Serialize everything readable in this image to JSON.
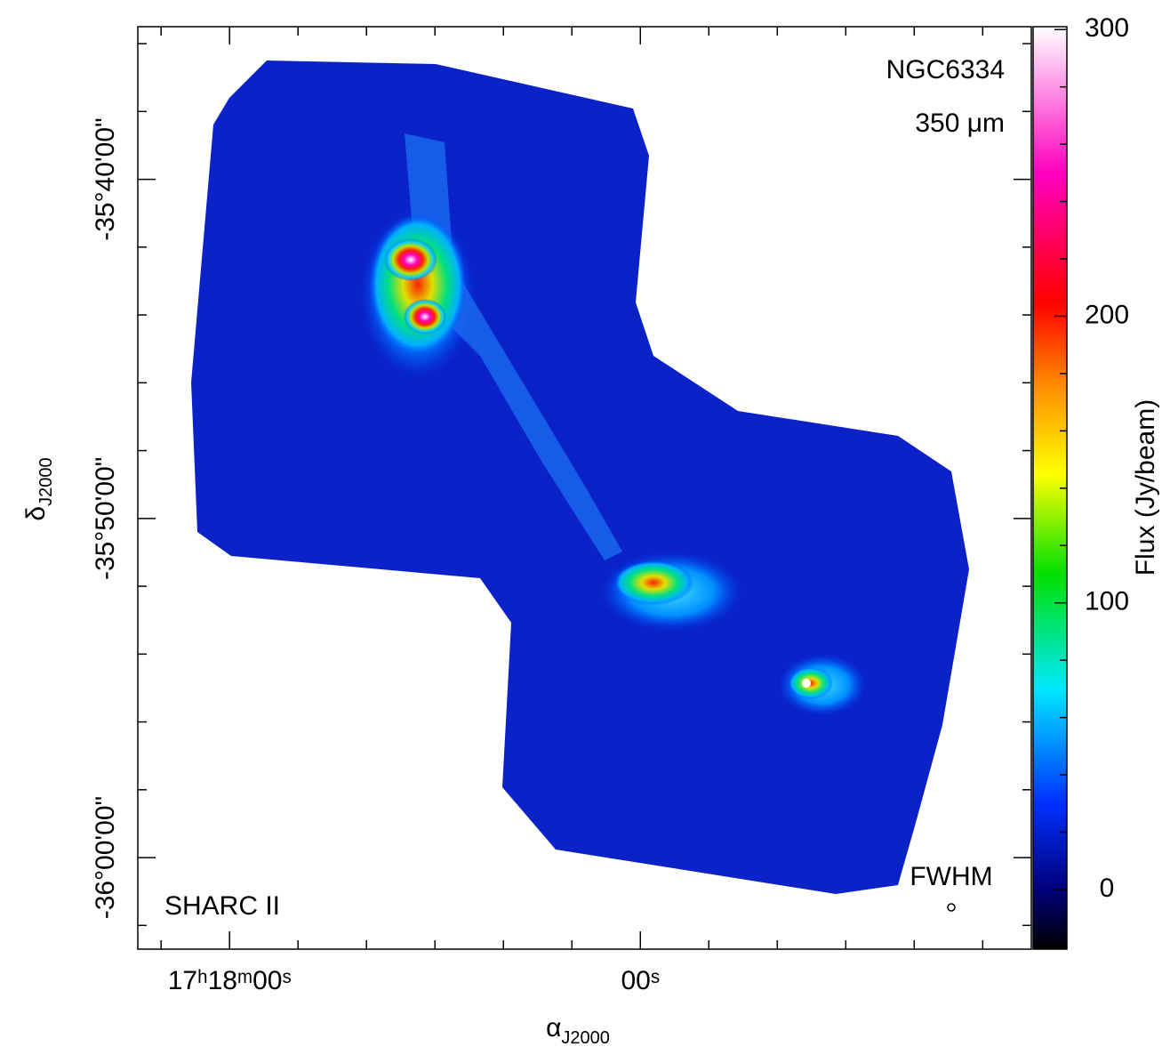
{
  "chart_data": {
    "type": "image",
    "title": "NGC6334",
    "wavelength": "350 μm",
    "instrument": "SHARC II",
    "beam_label": "FWHM",
    "xlabel": {
      "symbol": "α",
      "sub": "J2000"
    },
    "ylabel": {
      "symbol": "δ",
      "sub": "J2000"
    },
    "xlim": [
      1093.4,
      962.9
    ],
    "xticks": [
      {
        "value": 1080,
        "label": "17ʰ18ᵐ00ˢ"
      },
      {
        "value": 1020,
        "label": "00ˢ"
      }
    ],
    "xminorticks": [
      1090,
      1070,
      1060,
      1050,
      1040,
      1030,
      1010,
      1000,
      990,
      980,
      970
    ],
    "ylim": [
      -2162.7,
      -2135.5
    ],
    "yticks": [
      {
        "value": -2140,
        "label": "-35°40'00\""
      },
      {
        "value": -2150,
        "label": "-35°50'00\""
      },
      {
        "value": -2160,
        "label": "-36°00'00\""
      }
    ],
    "yminorticks": [
      -2136,
      -2138,
      -2142,
      -2144,
      -2146,
      -2148,
      -2152,
      -2154,
      -2156,
      -2158,
      -2162
    ],
    "colorbar": {
      "label": "Flux (Jy/beam)",
      "lim": [
        -20.8,
        301
      ],
      "ticks": [
        0,
        100,
        200,
        300
      ],
      "minorticks": [
        20,
        40,
        60,
        80,
        120,
        140,
        160,
        180,
        220,
        240,
        260,
        280
      ],
      "colormap": [
        {
          "value": -20.8,
          "color": "#000000"
        },
        {
          "value": 0,
          "color": "#00007a"
        },
        {
          "value": 30,
          "color": "#0030ff"
        },
        {
          "value": 70,
          "color": "#00e8ff"
        },
        {
          "value": 110,
          "color": "#00e000"
        },
        {
          "value": 145,
          "color": "#ffff00"
        },
        {
          "value": 175,
          "color": "#ff9000"
        },
        {
          "value": 205,
          "color": "#ff0000"
        },
        {
          "value": 250,
          "color": "#ff00c0"
        },
        {
          "value": 301,
          "color": "#ffffff"
        }
      ]
    }
  }
}
